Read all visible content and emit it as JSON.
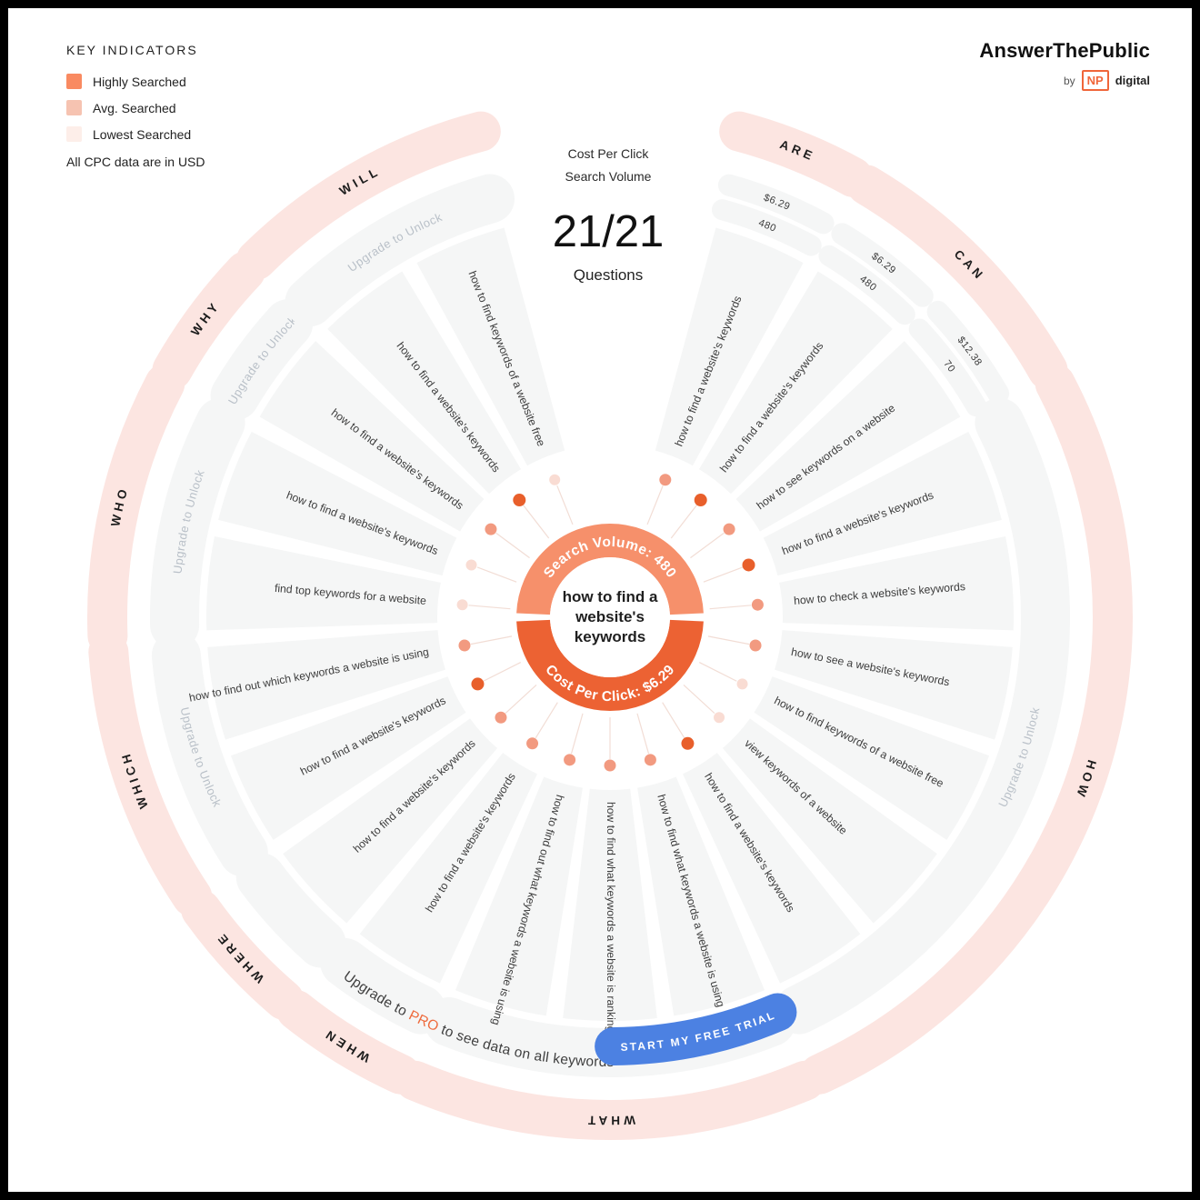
{
  "legend": {
    "title": "KEY INDICATORS",
    "items": [
      {
        "label": "Highly Searched",
        "color": "#f98a61"
      },
      {
        "label": "Avg. Searched",
        "color": "#f6c3b1"
      },
      {
        "label": "Lowest Searched",
        "color": "#fdeee9"
      }
    ],
    "note": "All CPC data are in USD"
  },
  "logo": {
    "brand": "AnswerThePublic",
    "by": "by",
    "np": "NP",
    "digital": "digital"
  },
  "header": {
    "cpc_label": "Cost Per Click",
    "volume_label": "Search Volume",
    "count": "21/21",
    "count_caption": "Questions"
  },
  "chart_data": {
    "type": "radial-keyword-wheel",
    "title": "how to find a website's keywords",
    "questions_total": "21/21",
    "center": {
      "keyword_lines": [
        "how to find a",
        "website's",
        "keywords"
      ],
      "search_volume": "480",
      "cpc": "$6.29",
      "volume_arc_label": "Search Volume: 480",
      "cpc_arc_label": "Cost Per Click: $6.29"
    },
    "upgrade_band_text": "Upgrade to Unlock",
    "groups": [
      {
        "label": "ARE",
        "band": "values",
        "questions": [
          {
            "text": "how to find a website's keywords",
            "level": "avg",
            "cpc": "$6.29",
            "volume": "480"
          }
        ]
      },
      {
        "label": "CAN",
        "band": "values",
        "questions": [
          {
            "text": "how to find a website's keywords",
            "level": "high",
            "cpc": "$6.29",
            "volume": "480"
          },
          {
            "text": "how to see keywords on a website",
            "level": "avg",
            "cpc": "$12.38",
            "volume": "70"
          }
        ]
      },
      {
        "label": "HOW",
        "band": "upgrade",
        "questions": [
          {
            "text": "how to find a website's keywords",
            "level": "high"
          },
          {
            "text": "how to check a website's keywords",
            "level": "avg"
          },
          {
            "text": "how to see a website's keywords",
            "level": "avg"
          },
          {
            "text": "how to find keywords of a website free",
            "level": "low"
          },
          {
            "text": "view keywords of a website",
            "level": "low"
          },
          {
            "text": "how to find a website's keywords",
            "level": "high"
          }
        ]
      },
      {
        "label": "WHAT",
        "band": "plain",
        "questions": [
          {
            "text": "how to find what keywords a website is using",
            "level": "avg"
          },
          {
            "text": "how to find what keywords a website is ranking for",
            "level": "avg"
          },
          {
            "text": "how to find out what keywords a website is using",
            "level": "avg"
          }
        ]
      },
      {
        "label": "WHEN",
        "band": "plain",
        "questions": [
          {
            "text": "how to find a website's keywords",
            "level": "avg"
          }
        ]
      },
      {
        "label": "WHERE",
        "band": "plain",
        "questions": [
          {
            "text": "how to find a website's keywords",
            "level": "avg"
          }
        ]
      },
      {
        "label": "WHICH",
        "band": "upgrade",
        "questions": [
          {
            "text": "how to find a website's keywords",
            "level": "high"
          },
          {
            "text": "how to find out which keywords a website is using",
            "level": "avg"
          }
        ]
      },
      {
        "label": "WHO",
        "band": "upgrade",
        "questions": [
          {
            "text": "find top keywords for a website",
            "level": "low"
          },
          {
            "text": "how to find a website's keywords",
            "level": "low"
          }
        ]
      },
      {
        "label": "WHY",
        "band": "upgrade",
        "questions": [
          {
            "text": "how to find a website's keywords",
            "level": "avg"
          }
        ]
      },
      {
        "label": "WILL",
        "band": "upgrade",
        "questions": [
          {
            "text": "how to find a website's keywords",
            "level": "high"
          },
          {
            "text": "how to find keywords of a website free",
            "level": "low"
          }
        ]
      }
    ],
    "colors": {
      "ring": "#fce5e1",
      "sector": "#f5f6f6",
      "ring_label": "#1c1c1c",
      "question_text": "#3d3d3d",
      "upgrade_text": "#b9c0c8",
      "value_text": "#3a3a3a",
      "center_top": "#f6906b",
      "center_bottom": "#ec6233",
      "dot_high": "#e85f2b",
      "dot_avg": "#f29a80",
      "dot_low": "#f9dcd3",
      "connector": "#f2ddd5"
    }
  },
  "footer": {
    "upgrade_prefix": "Upgrade to ",
    "pro": "PRO",
    "upgrade_suffix": " to see data on all keywords",
    "pro_color": "#ee6b3d",
    "button_label": "START MY FREE TRIAL",
    "button_color": "#4c81e2"
  }
}
